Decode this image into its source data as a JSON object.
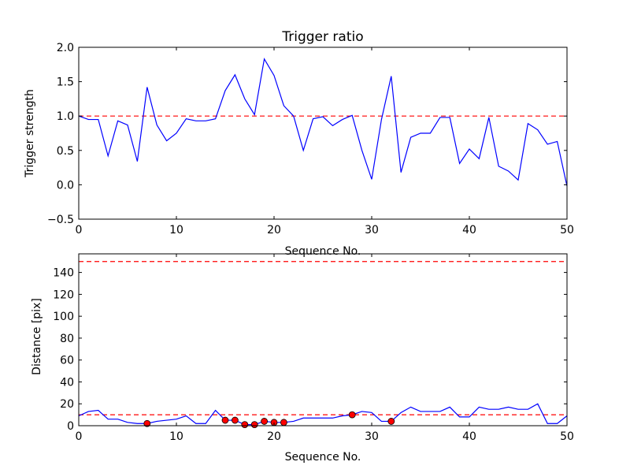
{
  "chart_data": [
    {
      "type": "line",
      "title": "Trigger ratio",
      "xlabel": "Sequence No.",
      "ylabel": "Trigger strength",
      "xlim": [
        0,
        50
      ],
      "ylim": [
        -0.5,
        2.0
      ],
      "xticks": [
        "0",
        "10",
        "20",
        "30",
        "40",
        "50"
      ],
      "yticks": [
        "−0.5",
        "0.0",
        "0.5",
        "1.0",
        "1.5",
        "2.0"
      ],
      "line_color": "#0000ff",
      "threshold_color": "#ff0000",
      "threshold": 1.0,
      "grid": false,
      "x": [
        0,
        1,
        2,
        3,
        4,
        5,
        6,
        7,
        8,
        9,
        10,
        11,
        12,
        13,
        14,
        15,
        16,
        17,
        18,
        19,
        20,
        21,
        22,
        23,
        24,
        25,
        26,
        27,
        28,
        29,
        30,
        31,
        32,
        33,
        34,
        35,
        36,
        37,
        38,
        39,
        40,
        41,
        42,
        43,
        44,
        45,
        46,
        47,
        48,
        49,
        50
      ],
      "y": [
        1.0,
        0.95,
        0.95,
        0.42,
        0.93,
        0.87,
        0.34,
        1.42,
        0.87,
        0.64,
        0.75,
        0.96,
        0.93,
        0.93,
        0.96,
        1.37,
        1.6,
        1.25,
        1.02,
        1.83,
        1.59,
        1.15,
        1.0,
        0.5,
        0.96,
        0.99,
        0.86,
        0.95,
        1.01,
        0.5,
        0.08,
        0.95,
        1.58,
        0.18,
        0.69,
        0.75,
        0.75,
        0.98,
        0.98,
        0.31,
        0.52,
        0.38,
        0.98,
        0.27,
        0.2,
        0.07,
        0.89,
        0.8,
        0.59,
        0.63,
        -0.02
      ]
    },
    {
      "type": "line",
      "title": "",
      "xlabel": "Sequence No.",
      "ylabel": "Distance [pix]",
      "xlim": [
        0,
        50
      ],
      "ylim": [
        0,
        157
      ],
      "xticks": [
        "0",
        "10",
        "20",
        "30",
        "40",
        "50"
      ],
      "yticks": [
        "0",
        "20",
        "40",
        "60",
        "80",
        "100",
        "120",
        "140"
      ],
      "line_color": "#0000ff",
      "threshold_color": "#ff0000",
      "marker_color": "#ff0000",
      "thresholds": [
        150,
        10
      ],
      "grid": false,
      "x": [
        0,
        1,
        2,
        3,
        4,
        5,
        6,
        7,
        8,
        9,
        10,
        11,
        12,
        13,
        14,
        15,
        16,
        17,
        18,
        19,
        20,
        21,
        22,
        23,
        24,
        25,
        26,
        27,
        28,
        29,
        30,
        31,
        32,
        33,
        34,
        35,
        36,
        37,
        38,
        39,
        40,
        41,
        42,
        43,
        44,
        45,
        46,
        47,
        48,
        49,
        50
      ],
      "y": [
        9,
        13,
        14,
        6,
        6,
        3,
        2,
        2,
        4,
        5,
        6,
        9,
        2,
        2,
        14,
        5,
        5,
        1,
        1,
        4,
        3,
        3,
        4,
        7,
        7,
        7,
        7,
        9,
        10,
        13,
        12,
        4,
        4,
        12,
        17,
        13,
        13,
        13,
        17,
        8,
        8,
        17,
        15,
        15,
        17,
        15,
        15,
        20,
        2,
        2,
        9
      ],
      "markers": [
        {
          "x": 7,
          "y": 2
        },
        {
          "x": 15,
          "y": 5
        },
        {
          "x": 16,
          "y": 5
        },
        {
          "x": 17,
          "y": 1
        },
        {
          "x": 18,
          "y": 1
        },
        {
          "x": 19,
          "y": 4
        },
        {
          "x": 20,
          "y": 3
        },
        {
          "x": 21,
          "y": 3
        },
        {
          "x": 28,
          "y": 10
        },
        {
          "x": 32,
          "y": 4
        }
      ]
    }
  ]
}
